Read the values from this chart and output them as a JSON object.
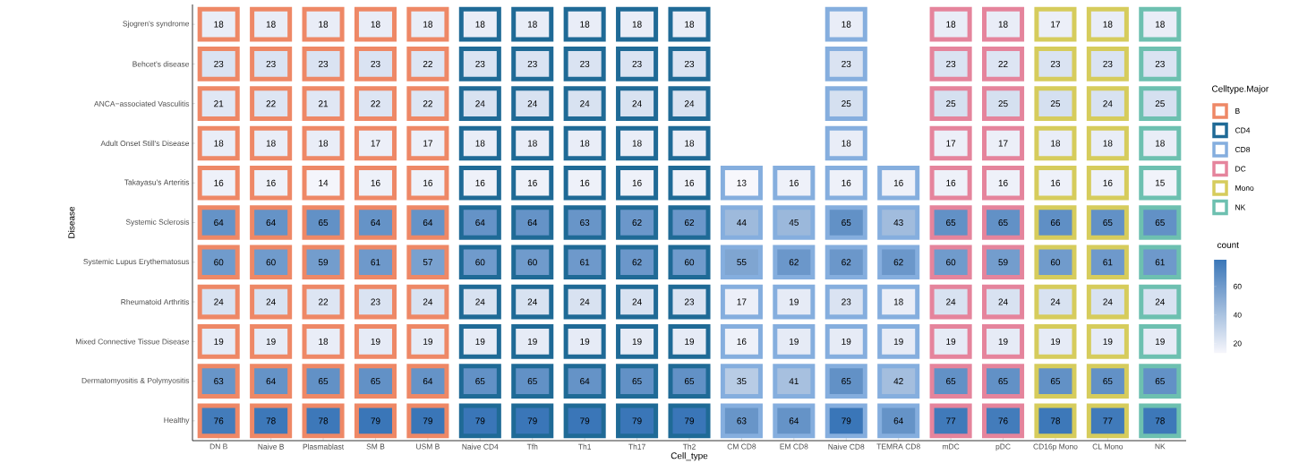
{
  "chart_data": {
    "type": "heatmap",
    "xlabel": "Cell_type",
    "ylabel": "Disease",
    "clabel": "count",
    "legend_title": "Celltype.Major",
    "legend": "right",
    "data_labels": true,
    "categories": [
      "DN B",
      "Naive B",
      "Plasmablast",
      "SM B",
      "USM B",
      "Naive CD4",
      "Tfh",
      "Th1",
      "Th17",
      "Th2",
      "CM CD8",
      "EM CD8",
      "Naive CD8",
      "TEMRA CD8",
      "mDC",
      "pDC",
      "CD16p Mono",
      "CL Mono",
      "NK"
    ],
    "colors": [
      "#ee8866",
      "#ee8866",
      "#ee8866",
      "#ee8866",
      "#ee8866",
      "#1f6a96",
      "#1f6a96",
      "#1f6a96",
      "#1f6a96",
      "#1f6a96",
      "#85aede",
      "#85aede",
      "#85aede",
      "#85aede",
      "#e5849c",
      "#e5849c",
      "#d6cc5c",
      "#d6cc5c",
      "#6dc0b0"
    ],
    "series": [
      {
        "name": "B",
        "color": "#ee8866",
        "values": [
          null,
          null,
          null,
          null,
          null,
          null,
          null,
          null,
          null,
          null,
          null,
          null,
          null,
          null,
          null,
          null,
          null,
          null,
          null
        ]
      },
      {
        "name": "CD4",
        "color": "#1f6a96",
        "values": [
          null,
          null,
          null,
          null,
          null,
          null,
          null,
          null,
          null,
          null,
          null,
          null,
          null,
          null,
          null,
          null,
          null,
          null,
          null
        ]
      },
      {
        "name": "CD8",
        "color": "#85aede",
        "values": [
          null,
          null,
          null,
          null,
          null,
          null,
          null,
          null,
          null,
          null,
          null,
          null,
          null,
          null,
          null,
          null,
          null,
          null,
          null
        ]
      },
      {
        "name": "DC",
        "color": "#e5849c",
        "values": [
          null,
          null,
          null,
          null,
          null,
          null,
          null,
          null,
          null,
          null,
          null,
          null,
          null,
          null,
          null,
          null,
          null,
          null,
          null
        ]
      },
      {
        "name": "Mono",
        "color": "#d6cc5c",
        "values": [
          null,
          null,
          null,
          null,
          null,
          null,
          null,
          null,
          null,
          null,
          null,
          null,
          null,
          null,
          null,
          null,
          null,
          null,
          null
        ]
      },
      {
        "name": "NK",
        "color": "#6dc0b0",
        "values": [
          null,
          null,
          null,
          null,
          null,
          null,
          null,
          null,
          null,
          null,
          null,
          null,
          null,
          null,
          null,
          null,
          null,
          null,
          null
        ]
      }
    ],
    "y_categories": [
      "Sjogren's syndrome",
      "Behcet's disease",
      "ANCA−associated Vasculitis",
      "Adult Onset Still's Disease",
      "Takayasu's Arteritis",
      "Systemic Sclerosis",
      "Systemic Lupus Erythematosus",
      "Rheumatoid Arthritis",
      "Mixed Connective Tissue Disease",
      "Dermatomyositis & Polymyositis",
      "Healthy"
    ],
    "cells": [
      [
        18,
        18,
        18,
        18,
        18,
        18,
        18,
        18,
        18,
        18,
        null,
        null,
        18,
        null,
        18,
        18,
        17,
        18,
        18
      ],
      [
        23,
        23,
        23,
        23,
        22,
        23,
        23,
        23,
        23,
        23,
        null,
        null,
        23,
        null,
        23,
        22,
        23,
        23,
        23
      ],
      [
        21,
        22,
        21,
        22,
        22,
        24,
        24,
        24,
        24,
        24,
        null,
        null,
        25,
        null,
        25,
        25,
        25,
        24,
        25
      ],
      [
        18,
        18,
        18,
        17,
        17,
        18,
        18,
        18,
        18,
        18,
        null,
        null,
        18,
        null,
        17,
        17,
        18,
        18,
        18
      ],
      [
        16,
        16,
        14,
        16,
        16,
        16,
        16,
        16,
        16,
        16,
        13,
        16,
        16,
        16,
        16,
        16,
        16,
        16,
        15
      ],
      [
        64,
        64,
        65,
        64,
        64,
        64,
        64,
        63,
        62,
        62,
        44,
        45,
        65,
        43,
        65,
        65,
        66,
        65,
        65
      ],
      [
        60,
        60,
        59,
        61,
        57,
        60,
        60,
        61,
        62,
        60,
        55,
        62,
        62,
        62,
        60,
        59,
        60,
        61,
        61
      ],
      [
        24,
        24,
        22,
        23,
        24,
        24,
        24,
        24,
        24,
        23,
        17,
        19,
        23,
        18,
        24,
        24,
        24,
        24,
        24
      ],
      [
        19,
        19,
        18,
        19,
        19,
        19,
        19,
        19,
        19,
        19,
        16,
        19,
        19,
        19,
        19,
        19,
        19,
        19,
        19
      ],
      [
        63,
        64,
        65,
        65,
        64,
        65,
        65,
        64,
        65,
        65,
        35,
        41,
        65,
        42,
        65,
        65,
        65,
        65,
        65
      ],
      [
        76,
        78,
        78,
        79,
        79,
        79,
        79,
        79,
        79,
        79,
        63,
        64,
        79,
        64,
        77,
        76,
        78,
        77,
        78
      ]
    ],
    "clim": [
      13,
      79
    ],
    "cticks": [
      20,
      40,
      60
    ]
  }
}
